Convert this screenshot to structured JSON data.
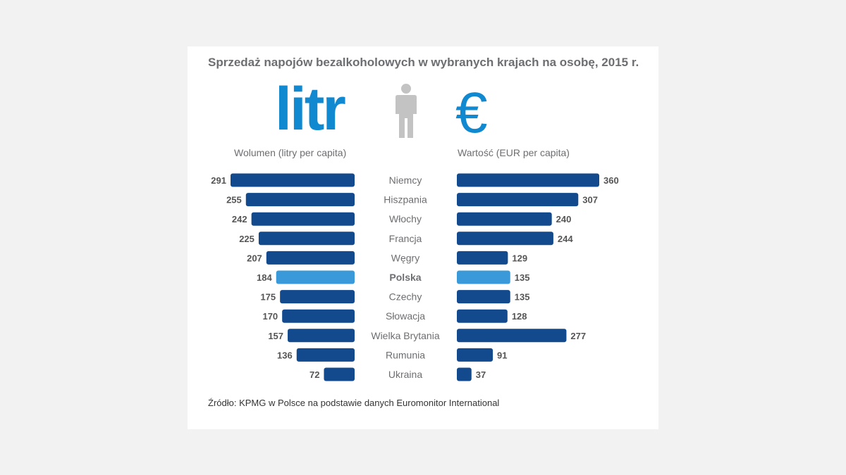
{
  "colors": {
    "bar": "#134a8e",
    "highlight": "#3a9ad9",
    "accent": "#1089d0",
    "icon": "#c3c3c3"
  },
  "header": {
    "title": "Sprzedaż napojów bezalkoholowych w wybranych krajach na osobę, 2015 r.",
    "big_left": "litr",
    "big_right": "€",
    "center_icon": "person-icon"
  },
  "footer": {
    "source": "Źródło: KPMG w Polsce na podstawie danych Euromonitor International"
  },
  "chart_data": {
    "type": "bar",
    "title": "Sprzedaż napojów bezalkoholowych w wybranych krajach na osobę, 2015 r.",
    "orientation": "horizontal-butterfly",
    "categories": [
      "Niemcy",
      "Hiszpania",
      "Włochy",
      "Francja",
      "Węgry",
      "Polska",
      "Czechy",
      "Słowacja",
      "Wielka Brytania",
      "Rumunia",
      "Ukraina"
    ],
    "highlight": "Polska",
    "series": [
      {
        "name": "Wolumen (litry per capita)",
        "side": "left",
        "values": [
          291,
          255,
          242,
          225,
          207,
          184,
          175,
          170,
          157,
          136,
          72
        ]
      },
      {
        "name": "Wartość (EUR per capita)",
        "side": "right",
        "values": [
          360,
          307,
          240,
          244,
          129,
          135,
          135,
          128,
          277,
          91,
          37
        ]
      }
    ]
  }
}
